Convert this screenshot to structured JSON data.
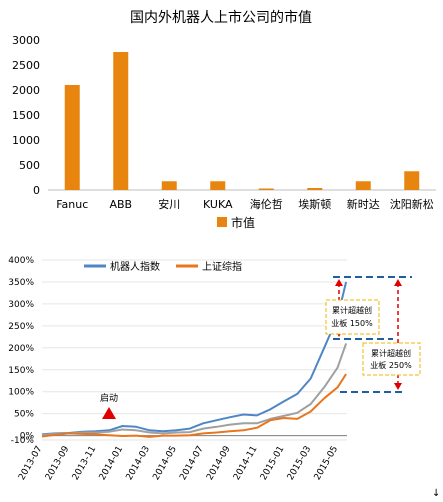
{
  "chart_data": [
    {
      "type": "bar",
      "title": "国内外机器人上市公司的市值",
      "categories": [
        "Fanuc",
        "ABB",
        "安川",
        "KUKA",
        "海伦哲",
        "埃斯顿",
        "新时达",
        "沈阳新松"
      ],
      "values": [
        2100,
        2760,
        175,
        175,
        30,
        40,
        175,
        375
      ],
      "series": [
        {
          "name": "市值",
          "values": [
            2100,
            2760,
            175,
            175,
            30,
            40,
            175,
            375
          ]
        }
      ],
      "ylim": [
        0,
        3000
      ],
      "yticks": [
        "0",
        "500",
        "1000",
        "1500",
        "2000",
        "2500",
        "3000"
      ],
      "legend": "bottom",
      "colors": {
        "bar": "#e8850f"
      }
    },
    {
      "type": "line",
      "title": "",
      "ylim": [
        -0.1,
        4.0
      ],
      "yticks": [
        "-10%",
        "0%",
        "50%",
        "100%",
        "150%",
        "200%",
        "250%",
        "300%",
        "350%",
        "400%"
      ],
      "xticks": [
        "2013-07",
        "2013-09",
        "2013-11",
        "2014-01",
        "2014-03",
        "2014-05",
        "2014-07",
        "2014-09",
        "2014-11",
        "2015-01",
        "2015-03",
        "2015-05"
      ],
      "legend": "top-left",
      "series": [
        {
          "name": "机器人指数",
          "color": "#4f86c6",
          "x": [
            "2013-07",
            "2013-08",
            "2013-09",
            "2013-10",
            "2013-11",
            "2013-12",
            "2014-01",
            "2014-02",
            "2014-03",
            "2014-04",
            "2014-05",
            "2014-06",
            "2014-07",
            "2014-08",
            "2014-09",
            "2014-10",
            "2014-11",
            "2014-12",
            "2015-01",
            "2015-02",
            "2015-03",
            "2015-04",
            "2015-05",
            "2015-05-20"
          ],
          "values": [
            0.03,
            0.05,
            0.06,
            0.09,
            0.1,
            0.12,
            0.22,
            0.2,
            0.12,
            0.1,
            0.12,
            0.16,
            0.28,
            0.35,
            0.42,
            0.48,
            0.46,
            0.6,
            0.78,
            0.95,
            1.3,
            2.0,
            2.7,
            3.5
          ]
        },
        {
          "name": "",
          "color": "#a0a0a0",
          "x": [
            "2013-07",
            "2013-08",
            "2013-09",
            "2013-10",
            "2013-11",
            "2013-12",
            "2014-01",
            "2014-02",
            "2014-03",
            "2014-04",
            "2014-05",
            "2014-06",
            "2014-07",
            "2014-08",
            "2014-09",
            "2014-10",
            "2014-11",
            "2014-12",
            "2015-01",
            "2015-02",
            "2015-03",
            "2015-04",
            "2015-05",
            "2015-05-20"
          ],
          "values": [
            0.02,
            0.04,
            0.05,
            0.07,
            0.07,
            0.09,
            0.14,
            0.12,
            0.07,
            0.05,
            0.07,
            0.08,
            0.16,
            0.2,
            0.25,
            0.28,
            0.28,
            0.38,
            0.45,
            0.52,
            0.72,
            1.1,
            1.55,
            2.1
          ]
        },
        {
          "name": "上证综指",
          "color": "#e8761f",
          "x": [
            "2013-07",
            "2013-08",
            "2013-09",
            "2013-10",
            "2013-11",
            "2013-12",
            "2014-01",
            "2014-02",
            "2014-03",
            "2014-04",
            "2014-05",
            "2014-06",
            "2014-07",
            "2014-08",
            "2014-09",
            "2014-10",
            "2014-11",
            "2014-12",
            "2015-01",
            "2015-02",
            "2015-03",
            "2015-04",
            "2015-05",
            "2015-05-20"
          ],
          "values": [
            -0.02,
            0.02,
            0.05,
            0.04,
            0.03,
            0.01,
            -0.01,
            0.0,
            -0.03,
            0.0,
            0.0,
            0.01,
            0.05,
            0.07,
            0.1,
            0.12,
            0.18,
            0.35,
            0.4,
            0.38,
            0.55,
            0.85,
            1.1,
            1.4
          ]
        }
      ],
      "annotations": [
        {
          "text": "启动",
          "x": "2013-12"
        },
        {
          "text": "累计超越创业板 150%"
        },
        {
          "text": "累计超越创业板 250%"
        }
      ]
    }
  ],
  "footer_glyph": "↓"
}
